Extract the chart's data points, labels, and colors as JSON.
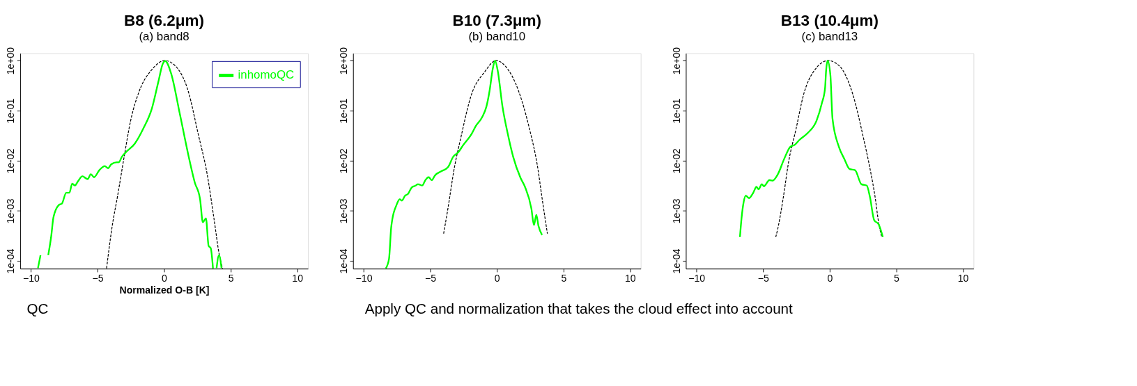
{
  "chart_data": [
    {
      "type": "line",
      "title": "B8 (6.2μm)",
      "subtitle": "(a) band8",
      "xlabel": "Normalized O-B [K]",
      "xlim": [
        -10.8,
        10.8
      ],
      "xticks": [
        -10,
        -5,
        0,
        5,
        10
      ],
      "ylim": [
        7e-05,
        1.4
      ],
      "log": true,
      "grid": false,
      "legend": "top right",
      "annotations": [
        "QC"
      ],
      "yticks": [
        {
          "value": 1,
          "label": "1e+00"
        },
        {
          "value": 0.1,
          "label": "1e-01"
        },
        {
          "value": 0.01,
          "label": "1e-02"
        },
        {
          "value": 0.001,
          "label": "1e-03"
        },
        {
          "value": 0.0001,
          "label": "1e-04"
        }
      ],
      "series": [
        {
          "color": "#000000",
          "line_style": "dashed",
          "x": [
            -4.32,
            -3.89,
            -3.49,
            -3.0,
            -2.52,
            -1.88,
            -0.92,
            0.05,
            0.85,
            1.82,
            2.54,
            3.26,
            3.75,
            4.15,
            4.39
          ],
          "values": [
            7.1e-05,
            0.00051,
            0.002,
            0.012,
            0.062,
            0.24,
            0.66,
            1,
            0.78,
            0.24,
            0.036,
            0.0049,
            0.00068,
            0.00013,
            7.1e-05
          ]
        },
        {
          "name": "inhomoQC",
          "color": "#00ff00",
          "line_style": "solid",
          "x": [
            -9.47,
            -9.28,
            -9.0,
            -8.7,
            -8.47,
            -8.31,
            -7.91,
            -7.67,
            -7.35,
            -7.11,
            -6.9,
            -6.7,
            -6.46,
            -6.14,
            -5.74,
            -5.5,
            -5.26,
            -4.86,
            -4.45,
            -4.21,
            -3.97,
            -3.57,
            -3.41,
            -3.17,
            -2.85,
            -2.2,
            -1.56,
            -0.92,
            -0.43,
            -0.11,
            0.08,
            0.53,
            1.17,
            1.82,
            2.3,
            2.7,
            2.91,
            3.14,
            3.34,
            3.5,
            3.67,
            3.8,
            3.94,
            4.12,
            4.31
          ],
          "values": [
            7.2e-05,
            0.00013,
            null,
            0.00013,
            0.00032,
            0.00074,
            0.0013,
            0.0014,
            0.0023,
            0.0023,
            0.0035,
            0.0032,
            0.0039,
            0.0049,
            0.0043,
            0.0054,
            0.0047,
            0.0065,
            0.0078,
            0.0071,
            0.0085,
            0.0093,
            0.0093,
            0.012,
            0.015,
            0.022,
            0.044,
            0.11,
            0.38,
            0.85,
            0.98,
            0.55,
            0.089,
            0.013,
            0.0037,
            0.0017,
            0.00059,
            0.00071,
            0.0002,
            0.00018,
            7.1e-05,
            null,
            7.2e-05,
            0.00013,
            7.2e-05
          ]
        }
      ]
    },
    {
      "type": "line",
      "title": "B10 (7.3μm)",
      "subtitle": "(b) band10",
      "xlim": [
        -10.8,
        10.8
      ],
      "xticks": [
        -10,
        -5,
        0,
        5,
        10
      ],
      "ylim": [
        7e-05,
        1.4
      ],
      "log": true,
      "grid": false,
      "annotations": [
        "Apply QC and normalization that takes the cloud effect into account"
      ],
      "yticks": [
        {
          "value": 1,
          "label": "1e+00"
        },
        {
          "value": 0.1,
          "label": "1e-01"
        },
        {
          "value": 0.01,
          "label": "1e-02"
        },
        {
          "value": 0.001,
          "label": "1e-03"
        },
        {
          "value": 0.0001,
          "label": "1e-04"
        }
      ],
      "series": [
        {
          "color": "#000000",
          "line_style": "dashed",
          "x": [
            -4.0,
            -3.68,
            -3.2,
            -2.72,
            -1.91,
            -0.95,
            -0.06,
            0.66,
            1.62,
            2.43,
            3.07,
            3.39,
            3.79
          ],
          "values": [
            0.00035,
            0.0011,
            0.0071,
            0.028,
            0.21,
            0.58,
            1,
            0.76,
            0.25,
            0.045,
            0.0071,
            0.0018,
            0.00035
          ]
        },
        {
          "color": "#00ff00",
          "line_style": "solid",
          "x": [
            -8.34,
            -8.1,
            -7.94,
            -7.86,
            -7.54,
            -7.3,
            -7.14,
            -6.9,
            -6.66,
            -6.41,
            -6.09,
            -5.93,
            -5.61,
            -5.37,
            -5.13,
            -4.89,
            -4.65,
            -4.16,
            -3.68,
            -3.28,
            -2.88,
            -2.56,
            -1.91,
            -1.59,
            -1.11,
            -0.79,
            -0.55,
            -0.31,
            -0.14,
            0.06,
            0.42,
            0.82,
            1.22,
            1.78,
            2.11,
            2.59,
            2.78,
            2.96,
            3.12,
            3.39
          ],
          "values": [
            7.1e-05,
            0.00011,
            0.00046,
            0.00066,
            0.0013,
            0.0017,
            0.0016,
            0.002,
            0.0022,
            0.0029,
            0.0032,
            0.0034,
            0.0032,
            0.0041,
            0.0047,
            0.0041,
            0.0051,
            0.0062,
            0.0074,
            0.012,
            0.015,
            0.02,
            0.034,
            0.049,
            0.074,
            0.12,
            0.25,
            0.69,
            1,
            0.63,
            0.12,
            0.034,
            0.012,
            0.0045,
            0.003,
            0.0011,
            0.00052,
            0.00083,
            0.0005,
            0.00033
          ]
        }
      ]
    },
    {
      "type": "line",
      "title": "B13 (10.4μm)",
      "subtitle": "(c) band13",
      "xlim": [
        -10.8,
        10.8
      ],
      "xticks": [
        -10,
        -5,
        0,
        5,
        10
      ],
      "ylim": [
        7e-05,
        1.4
      ],
      "log": true,
      "grid": false,
      "yticks": [
        {
          "value": 1,
          "label": "1e+00"
        },
        {
          "value": 0.1,
          "label": "1e-01"
        },
        {
          "value": 0.01,
          "label": "1e-02"
        },
        {
          "value": 0.001,
          "label": "1e-03"
        },
        {
          "value": 0.0001,
          "label": "1e-04"
        }
      ],
      "series": [
        {
          "color": "#000000",
          "line_style": "dashed",
          "x": [
            -4.05,
            -3.89,
            -3.49,
            -3.09,
            -2.52,
            -1.96,
            -1.16,
            -0.11,
            0.77,
            1.74,
            2.54,
            3.02,
            3.42,
            3.67,
            3.91
          ],
          "values": [
            0.0003,
            0.00045,
            0.0018,
            0.0093,
            0.044,
            0.21,
            0.63,
            1,
            0.76,
            0.21,
            0.028,
            0.0071,
            0.0018,
            0.00059,
            0.0003
          ]
        },
        {
          "color": "#00ff00",
          "line_style": "solid",
          "x": [
            -6.74,
            -6.62,
            -6.46,
            -6.3,
            -6.06,
            -5.74,
            -5.5,
            -5.34,
            -5.1,
            -4.94,
            -4.53,
            -4.29,
            -3.89,
            -3.41,
            -2.96,
            -2.6,
            -2.28,
            -1.64,
            -0.99,
            -0.59,
            -0.35,
            -0.27,
            -0.16,
            0.05,
            0.21,
            0.69,
            1.09,
            1.5,
            1.9,
            2.38,
            2.78,
            3.02,
            3.34,
            3.67,
            3.99
          ],
          "values": [
            0.0003,
            0.00071,
            0.0015,
            0.002,
            0.0018,
            0.0023,
            0.003,
            0.0027,
            0.0034,
            0.0031,
            0.0041,
            0.004,
            0.0054,
            0.011,
            0.019,
            0.021,
            0.026,
            0.036,
            0.063,
            0.14,
            0.28,
            0.63,
            1,
            0.52,
            0.069,
            0.019,
            0.011,
            0.0068,
            0.0065,
            0.0034,
            0.0032,
            0.0019,
            0.00065,
            0.00054,
            0.0003
          ]
        }
      ]
    }
  ]
}
